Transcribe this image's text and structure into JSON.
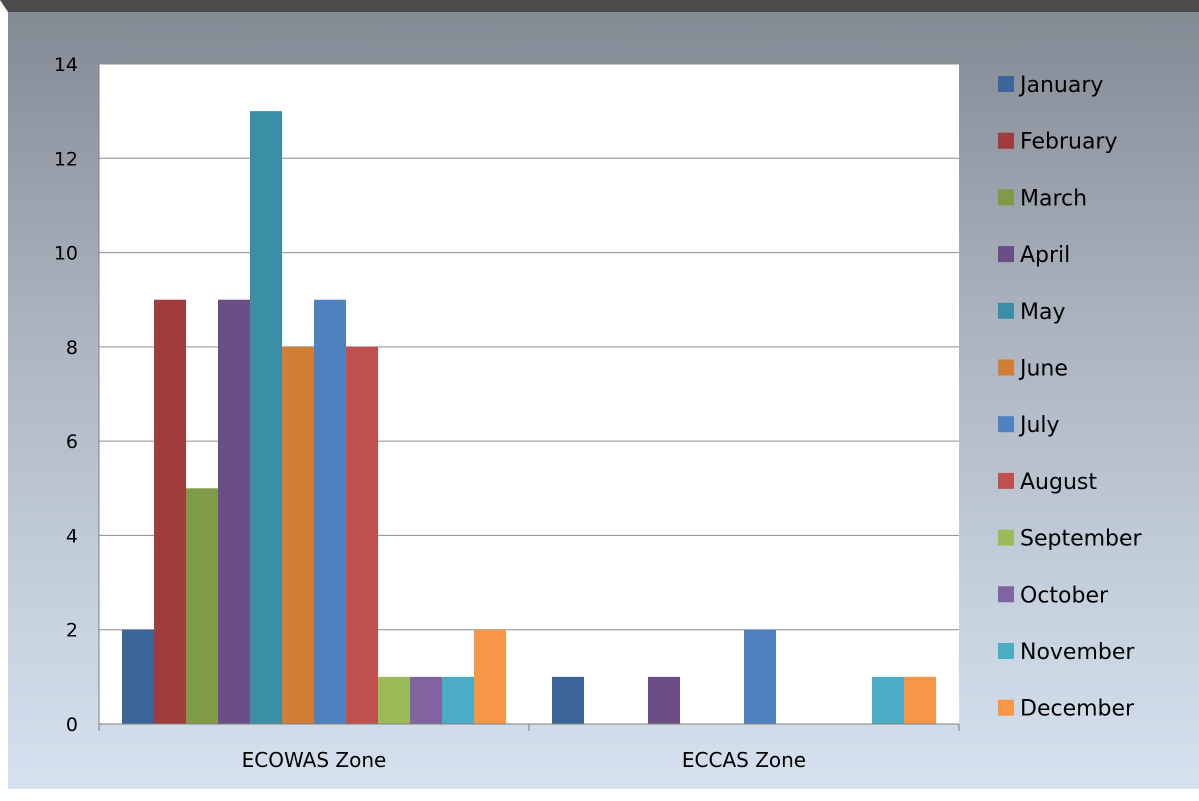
{
  "chart_data": {
    "type": "bar",
    "title": "",
    "xlabel": "",
    "ylabel": "",
    "categories": [
      "ECOWAS Zone",
      "ECCAS Zone"
    ],
    "ylim": [
      0,
      14
    ],
    "yticks": [
      0,
      2,
      4,
      6,
      8,
      10,
      12,
      14
    ],
    "grid": true,
    "legend_position": "right",
    "series": [
      {
        "name": "January",
        "color": "#3c6599",
        "values": [
          2,
          1
        ]
      },
      {
        "name": "February",
        "color": "#a03c3c",
        "values": [
          9,
          0
        ]
      },
      {
        "name": "March",
        "color": "#7f9b48",
        "values": [
          5,
          0
        ]
      },
      {
        "name": "April",
        "color": "#6a4f86",
        "values": [
          9,
          1
        ]
      },
      {
        "name": "May",
        "color": "#3a8ea5",
        "values": [
          13,
          0
        ]
      },
      {
        "name": "June",
        "color": "#d37e36",
        "values": [
          8,
          0
        ]
      },
      {
        "name": "July",
        "color": "#4f81c0",
        "values": [
          9,
          2
        ]
      },
      {
        "name": "August",
        "color": "#c0504d",
        "values": [
          8,
          0
        ]
      },
      {
        "name": "September",
        "color": "#9bbb59",
        "values": [
          1,
          0
        ]
      },
      {
        "name": "October",
        "color": "#8064a2",
        "values": [
          1,
          0
        ]
      },
      {
        "name": "November",
        "color": "#4bacc6",
        "values": [
          1,
          1
        ]
      },
      {
        "name": "December",
        "color": "#f79646",
        "values": [
          2,
          1
        ]
      }
    ]
  }
}
